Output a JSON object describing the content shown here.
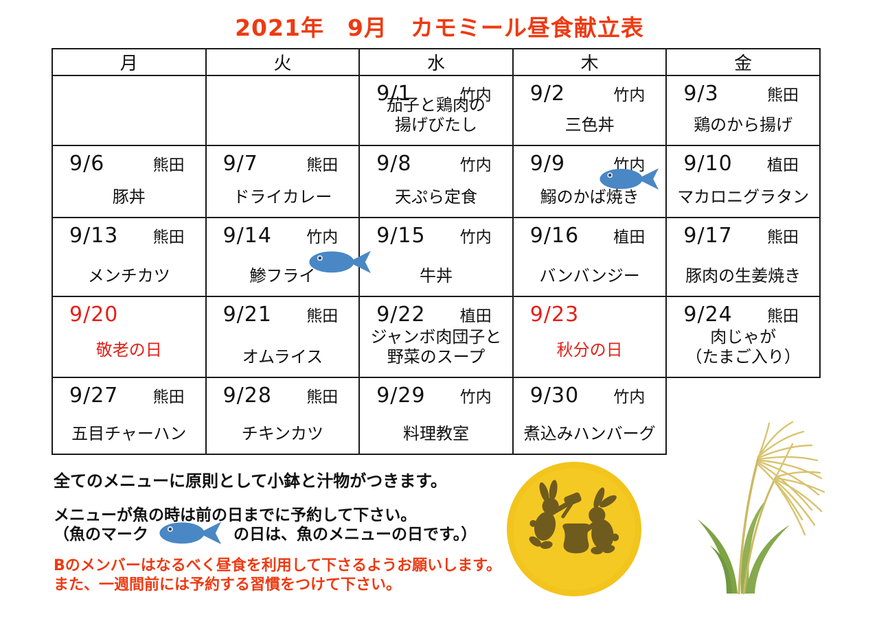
{
  "title": "2021年　9月　カモミール昼食献立表",
  "weekdays": [
    "月",
    "火",
    "水",
    "木",
    "金"
  ],
  "calendar_rows": [
    [
      {
        "date": "",
        "cook": "",
        "menu": ""
      },
      {
        "date": "",
        "cook": "",
        "menu": ""
      },
      {
        "date": "9/1",
        "cook": "竹内",
        "menu": "茄子と鶏肉の\n揚げびたし"
      },
      {
        "date": "9/2",
        "cook": "竹内",
        "menu": "三色丼"
      },
      {
        "date": "9/3",
        "cook": "熊田",
        "menu": "鶏のから揚げ"
      }
    ],
    [
      {
        "date": "9/6",
        "cook": "熊田",
        "menu": "豚丼"
      },
      {
        "date": "9/7",
        "cook": "熊田",
        "menu": "ドライカレー"
      },
      {
        "date": "9/8",
        "cook": "竹内",
        "menu": "天ぷら定食"
      },
      {
        "date": "9/9",
        "cook": "竹内",
        "menu": "鰯のかば焼き",
        "fish": "top-right"
      },
      {
        "date": "9/10",
        "cook": "植田",
        "menu": "マカロニグラタン"
      }
    ],
    [
      {
        "date": "9/13",
        "cook": "熊田",
        "menu": "メンチカツ"
      },
      {
        "date": "9/14",
        "cook": "竹内",
        "menu": "鯵フライ",
        "fish": "mid-right"
      },
      {
        "date": "9/15",
        "cook": "竹内",
        "menu": "牛丼"
      },
      {
        "date": "9/16",
        "cook": "植田",
        "menu": "バンバンジー"
      },
      {
        "date": "9/17",
        "cook": "熊田",
        "menu": "豚肉の生姜焼き"
      }
    ],
    [
      {
        "date": "9/20",
        "cook": "",
        "menu": "敬老の日",
        "holiday": true
      },
      {
        "date": "9/21",
        "cook": "熊田",
        "menu": "オムライス"
      },
      {
        "date": "9/22",
        "cook": "植田",
        "menu": "ジャンボ肉団子と\n野菜のスープ"
      },
      {
        "date": "9/23",
        "cook": "",
        "menu": "秋分の日",
        "holiday": true
      },
      {
        "date": "9/24",
        "cook": "熊田",
        "menu": "肉じゃが\n（たまご入り）"
      }
    ],
    [
      {
        "date": "9/27",
        "cook": "熊田",
        "menu": "五目チャーハン"
      },
      {
        "date": "9/28",
        "cook": "熊田",
        "menu": "チキンカツ"
      },
      {
        "date": "9/29",
        "cook": "竹内",
        "menu": "料理教室"
      },
      {
        "date": "9/30",
        "cook": "竹内",
        "menu": "煮込みハンバーグ"
      },
      {
        "missing": true
      }
    ]
  ],
  "notes": {
    "note_sides": "全てのメニューに原則として小鉢と汁物がつきます。",
    "note_fish_1": "メニューが魚の時は前の日までに予約して下さい。",
    "note_fish_2_pre": "（魚のマーク",
    "note_fish_2_post": "の日は、魚のメニューの日です。）",
    "note_red_1": "Bのメンバーはなるべく昼食を利用して下さるようお願いします。",
    "note_red_2": "また、一週間前には予約する習慣をつけて下さい。"
  },
  "icons": {
    "fish": "fish-icon",
    "moon": "moon-rabbits-illustration",
    "grass": "pampas-grass-illustration"
  },
  "colors": {
    "title_red": "#ee3a12",
    "holiday_red": "#e32119",
    "fish_blue": "#4a87c5",
    "moon_yellow": "#f2c41c",
    "moon_light": "#f7ce2b",
    "rabbit_brown": "#6f5b1d",
    "grass_green": "#7da344",
    "plume_tan": "#d8c36f",
    "border_black": "#1a1a1a"
  }
}
